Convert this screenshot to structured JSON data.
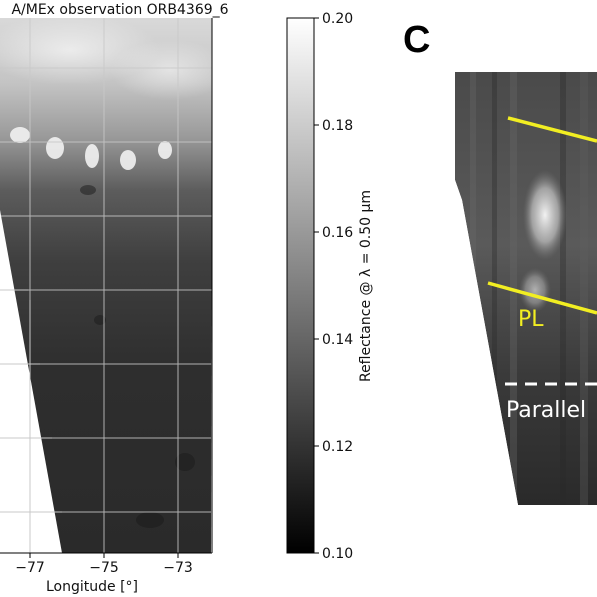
{
  "left_panel": {
    "title": "A/MEx observation ORB4369_6",
    "x_ticks": [
      "−77",
      "−75",
      "−73"
    ],
    "x_label": "Longitude [°]"
  },
  "colorbar": {
    "ticks": [
      "0.20",
      "0.18",
      "0.16",
      "0.14",
      "0.12",
      "0.10"
    ],
    "label": "Reflectance @ λ = 0.50 µm",
    "range": [
      0.1,
      0.2
    ],
    "colormap": "grayscale"
  },
  "right_panel": {
    "panel_letter": "C",
    "line_label": "PL",
    "dashed_label": "Parallel",
    "overlay_line_color": "#f2ee22",
    "dashed_line_color": "#ffffff"
  }
}
